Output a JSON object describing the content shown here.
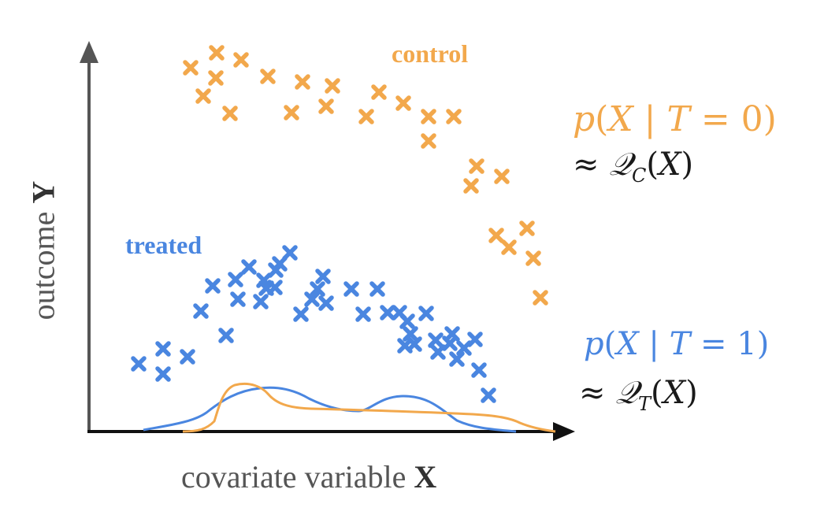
{
  "colors": {
    "control": "#f2a84c",
    "treated": "#4a86e0",
    "axis": "#222222",
    "yaxis": "#555555",
    "text_dark": "#1a1a1a"
  },
  "labels": {
    "control": "control",
    "treated": "treated",
    "x_axis_prefix": "covariate variable ",
    "x_axis_var": "X",
    "y_axis_prefix": "outcome ",
    "y_axis_var": "Y"
  },
  "formulas": {
    "control_density": "p(X | T = 0)",
    "control_approx": "≈ 𝒬_C(X)",
    "treated_density": "p(X | T = 1)",
    "treated_approx": "≈ 𝒬_T(X)"
  },
  "markers": {
    "control_shape": "x-mark",
    "treated_shape": "x-mark"
  }
}
